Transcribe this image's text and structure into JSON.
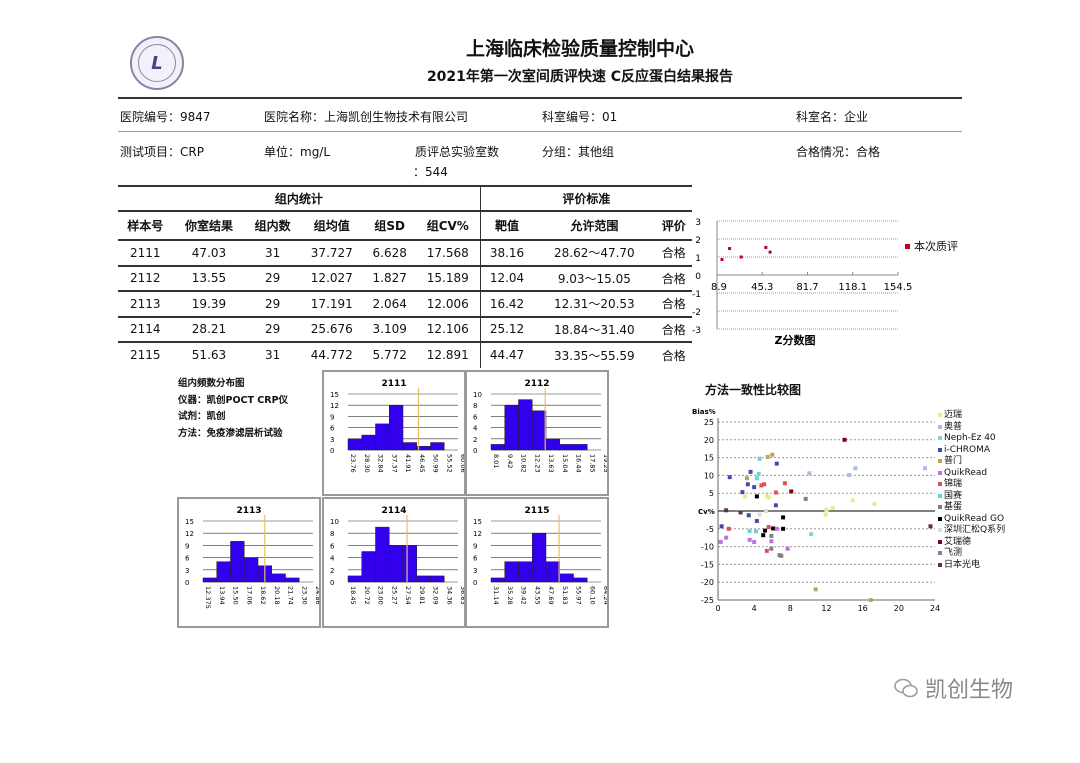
{
  "header": {
    "logo_text": "SCCL",
    "title": "上海临床检验质量控制中心",
    "subtitle": "2021年第一次室间质评快速 C反应蛋白结果报告"
  },
  "info": {
    "hospital_no": "医院编号：9847",
    "hospital_name": "医院名称：上海凯创生物技术有限公司",
    "dept_no": "科室编号：01",
    "dept_name": "科室名：企业",
    "test_item": "测试项目：CRP",
    "unit": "单位：mg/L",
    "total_labs_label": "质评总实验室数",
    "total_labs_value": "：544",
    "group": "分组：其他组",
    "pass_status": "合格情况：合格"
  },
  "table": {
    "group_header": "组内统计",
    "criteria_header": "评价标准",
    "columns": [
      "样本号",
      "你室结果",
      "组内数",
      "组均值",
      "组SD",
      "组CV%",
      "靶值",
      "允许范围",
      "评价"
    ],
    "rows": [
      [
        "2111",
        "47.03",
        "31",
        "37.727",
        "6.628",
        "17.568",
        "38.16",
        "28.62～47.70",
        "合格"
      ],
      [
        "2112",
        "13.55",
        "29",
        "12.027",
        "1.827",
        "15.189",
        "12.04",
        "9.03～15.05",
        "合格"
      ],
      [
        "2113",
        "19.39",
        "29",
        "17.191",
        "2.064",
        "12.006",
        "16.42",
        "12.31～20.53",
        "合格"
      ],
      [
        "2114",
        "28.21",
        "29",
        "25.676",
        "3.109",
        "12.106",
        "25.12",
        "18.84～31.40",
        "合格"
      ],
      [
        "2115",
        "51.63",
        "31",
        "44.772",
        "5.772",
        "12.891",
        "44.47",
        "33.35～55.59",
        "合格"
      ]
    ]
  },
  "zchart": {
    "title": "Z分数图",
    "legend": "本次质评",
    "color": "#c00020",
    "xticks": [
      "8.9",
      "45.3",
      "81.7",
      "118.1",
      "154.5"
    ],
    "xlim": [
      8.9,
      154.5
    ],
    "yticks": [
      "3",
      "2",
      "1",
      "0",
      "-1",
      "-2",
      "-3"
    ],
    "ylim": [
      -3,
      3
    ],
    "points": [
      [
        12.9,
        0.86
      ],
      [
        19,
        1.47
      ],
      [
        28.4,
        1.0
      ],
      [
        48.2,
        1.53
      ],
      [
        51.6,
        1.27
      ]
    ]
  },
  "notes": {
    "line1": "组内频数分布图",
    "line2": "仪器：凯创POCT CRP仪",
    "line3": "试剂：凯创",
    "line4": "方法：免疫渗滤层析试验"
  },
  "histograms": [
    {
      "title": "2111",
      "ymax": 15,
      "yticks": [
        "15",
        "12",
        "9",
        "6",
        "3",
        "0"
      ],
      "bins": [
        "23.76",
        "28.30",
        "32.84",
        "37.37",
        "41.91",
        "46.45",
        "50.99",
        "55.52",
        "60.06"
      ],
      "counts": [
        3,
        4,
        7,
        12,
        2,
        1,
        2,
        0
      ],
      "marker": 47.03
    },
    {
      "title": "2112",
      "ymax": 10,
      "yticks": [
        "10",
        "8",
        "6",
        "4",
        "2",
        "0"
      ],
      "bins": [
        "8.01",
        "9.42",
        "10.82",
        "12.23",
        "13.63",
        "15.04",
        "16.44",
        "17.85",
        "19.25"
      ],
      "counts": [
        1,
        8,
        9,
        7,
        2,
        1,
        1,
        0
      ],
      "marker": 13.55
    },
    {
      "title": "2113",
      "ymax": 15,
      "yticks": [
        "15",
        "12",
        "9",
        "6",
        "3",
        "0"
      ],
      "bins": [
        "12.375",
        "13.94",
        "15.50",
        "17.06",
        "18.62",
        "20.18",
        "21.74",
        "23.30",
        "24.86"
      ],
      "counts": [
        1,
        5,
        10,
        6,
        4,
        2,
        1,
        0
      ],
      "marker": 19.39
    },
    {
      "title": "2114",
      "ymax": 10,
      "yticks": [
        "10",
        "8",
        "6",
        "4",
        "2",
        "0"
      ],
      "bins": [
        "18.45",
        "20.72",
        "23.00",
        "25.27",
        "27.54",
        "29.81",
        "32.09",
        "34.36",
        "36.63"
      ],
      "counts": [
        1,
        5,
        9,
        6,
        6,
        1,
        1,
        0
      ],
      "marker": 28.21
    },
    {
      "title": "2115",
      "ymax": 15,
      "yticks": [
        "15",
        "12",
        "9",
        "6",
        "3",
        "0"
      ],
      "bins": [
        "31.14",
        "35.28",
        "39.42",
        "43.55",
        "47.69",
        "51.83",
        "55.97",
        "60.10",
        "64.24"
      ],
      "counts": [
        1,
        5,
        5,
        12,
        5,
        2,
        1,
        0
      ],
      "marker": 51.63
    }
  ],
  "hist_colors": {
    "bar": "#3300ee",
    "marker": "#e8c060"
  },
  "method_chart": {
    "title": "方法一致性比较图",
    "ylabel": "Bias%",
    "xlabel": "Cv%",
    "xticks": [
      "0",
      "4",
      "8",
      "12",
      "16",
      "20",
      "24"
    ],
    "xlim": [
      0,
      24
    ],
    "yticks": [
      "25",
      "20",
      "15",
      "10",
      "5",
      "-5",
      "-10",
      "-15",
      "-20",
      "-25"
    ],
    "ylim": [
      -25,
      25
    ],
    "series": [
      {
        "name": "迈瑞",
        "color": "#e4ec88"
      },
      {
        "name": "奥普",
        "color": "#a8bce8"
      },
      {
        "name": "Neph-Ez 40",
        "color": "#88d8a8"
      },
      {
        "name": "i-CHROMA",
        "color": "#4848a8"
      },
      {
        "name": "普门",
        "color": "#b8a468"
      },
      {
        "name": "QuikRead",
        "color": "#c070e0"
      },
      {
        "name": "锦瑞",
        "color": "#e05050"
      },
      {
        "name": "国赛",
        "color": "#68d4d4"
      },
      {
        "name": "基蛋",
        "color": "#808080"
      },
      {
        "name": "QuikRead GO",
        "color": "#000000"
      },
      {
        "name": "深圳汇松Q系列",
        "color": "#dcdcdc"
      },
      {
        "name": "艾瑞德",
        "color": "#800020"
      },
      {
        "name": "飞测",
        "color": "#8080a8"
      },
      {
        "name": "日本光电",
        "color": "#603050"
      }
    ],
    "points": [
      [
        14.0,
        20,
        11
      ],
      [
        4.6,
        14.7,
        7
      ],
      [
        5.5,
        15.2,
        4
      ],
      [
        6.0,
        15.8,
        4
      ],
      [
        6.5,
        13.3,
        3
      ],
      [
        3.6,
        11,
        3
      ],
      [
        4.5,
        10.4,
        7
      ],
      [
        4.3,
        9.2,
        7
      ],
      [
        1.3,
        9.5,
        3
      ],
      [
        3.2,
        9.2,
        4
      ],
      [
        3.3,
        7.5,
        3
      ],
      [
        4.0,
        6.7,
        3
      ],
      [
        4.8,
        7.2,
        6
      ],
      [
        5.1,
        7.5,
        6
      ],
      [
        7.4,
        7.8,
        6
      ],
      [
        8.1,
        5.5,
        11
      ],
      [
        6.4,
        5.2,
        6
      ],
      [
        2.7,
        5.3,
        3
      ],
      [
        4.3,
        4.1,
        9
      ],
      [
        3.0,
        4.1,
        0
      ],
      [
        5.4,
        4.3,
        0
      ],
      [
        5.6,
        3.8,
        0
      ],
      [
        10.1,
        10.6,
        1
      ],
      [
        14.5,
        10.1,
        1
      ],
      [
        15.2,
        12,
        1
      ],
      [
        22.9,
        12,
        1
      ],
      [
        9.7,
        3.4,
        8
      ],
      [
        14.9,
        3,
        0
      ],
      [
        17.3,
        2,
        0
      ],
      [
        12.7,
        0.8,
        0
      ],
      [
        12,
        0.4,
        0
      ],
      [
        11.9,
        -1,
        0
      ],
      [
        6.4,
        1.6,
        3
      ],
      [
        0.9,
        0.2,
        13
      ],
      [
        2.5,
        -0.4,
        13
      ],
      [
        5.3,
        0,
        10
      ],
      [
        4.6,
        -1,
        10
      ],
      [
        3.4,
        -1.2,
        3
      ],
      [
        4.3,
        -2.8,
        3
      ],
      [
        7.2,
        -1.8,
        9
      ],
      [
        0.4,
        -4.3,
        3
      ],
      [
        1.2,
        -5,
        6
      ],
      [
        3.5,
        -5.6,
        7
      ],
      [
        4.2,
        -5.7,
        7
      ],
      [
        5.2,
        -5.5,
        9
      ],
      [
        6.1,
        -4.9,
        9
      ],
      [
        7.2,
        -5,
        9
      ],
      [
        6.5,
        -5,
        5
      ],
      [
        5.6,
        -4.5,
        6
      ],
      [
        10.3,
        -6.5,
        2
      ],
      [
        5.0,
        -6.8,
        9
      ],
      [
        5.9,
        -7,
        8
      ],
      [
        0.9,
        -7.5,
        5
      ],
      [
        0.3,
        -8.7,
        5
      ],
      [
        3.5,
        -8.1,
        5
      ],
      [
        4.0,
        -8.7,
        5
      ],
      [
        5.9,
        -8.5,
        5
      ],
      [
        5.4,
        -11.2,
        6
      ],
      [
        5.9,
        -10.6,
        8
      ],
      [
        7.7,
        -10.6,
        5
      ],
      [
        6.8,
        -12.4,
        8
      ],
      [
        7.0,
        -12.6,
        8
      ],
      [
        10.8,
        -22,
        4
      ],
      [
        16.9,
        -25,
        4
      ],
      [
        23.5,
        -4.3,
        13
      ]
    ]
  },
  "watermark": {
    "text": "凯创生物",
    "icon": "wechat-icon"
  }
}
